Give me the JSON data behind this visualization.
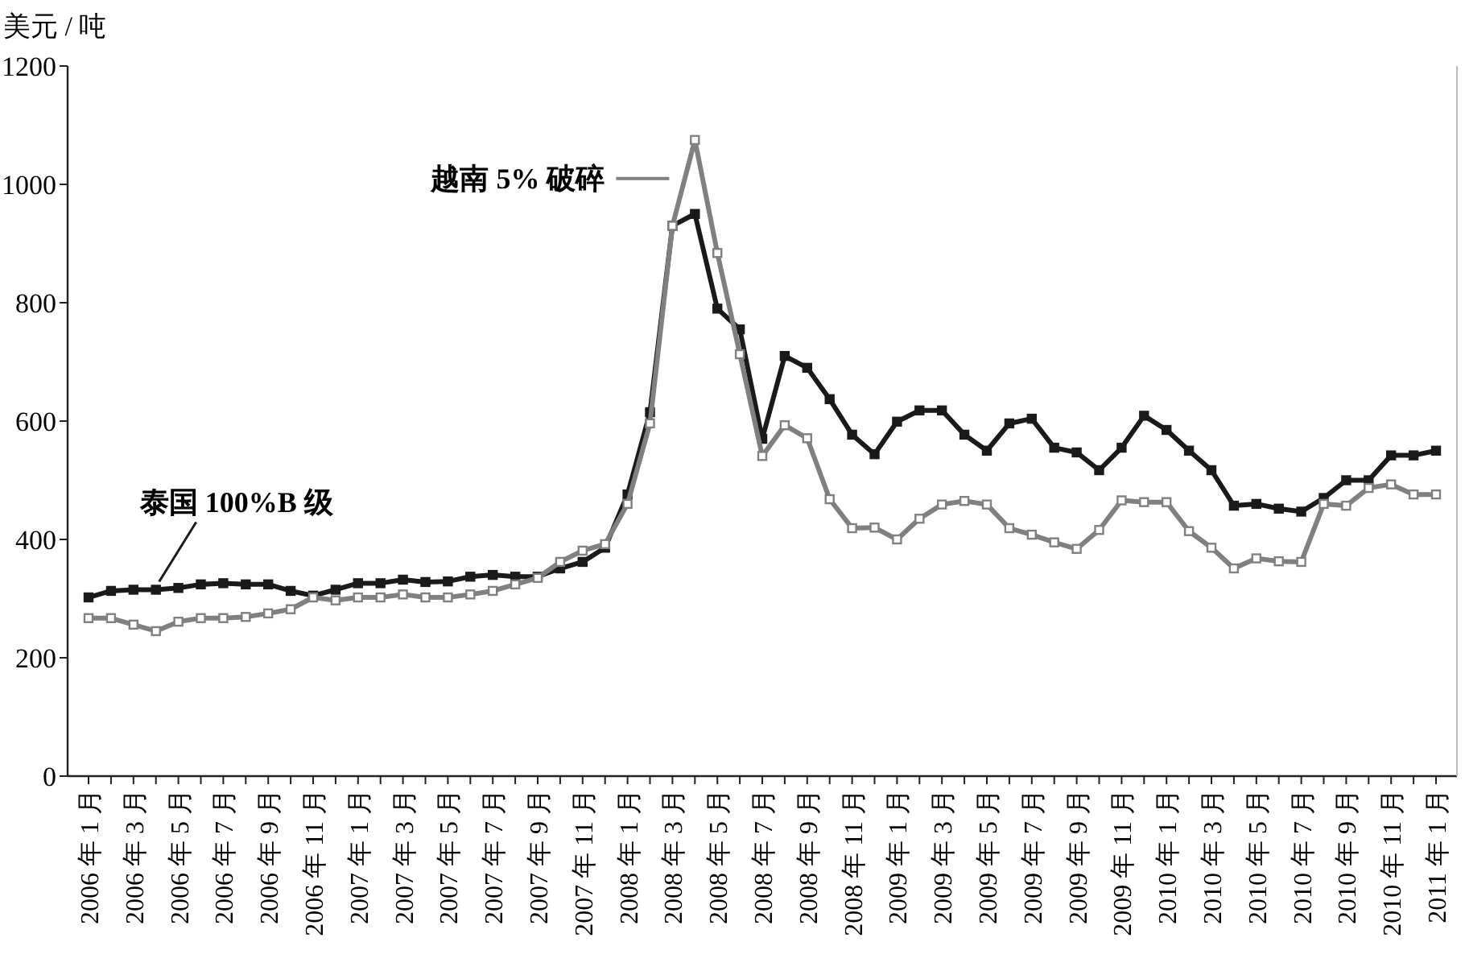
{
  "chart_data": {
    "type": "line",
    "ylabel": "美元 / 吨",
    "categories": [
      "2006 年 1 月",
      null,
      "2006 年 3 月",
      null,
      "2006 年 5 月",
      null,
      "2006 年 7 月",
      null,
      "2006 年 9 月",
      null,
      "2006 年 11 月",
      null,
      "2007 年 1 月",
      null,
      "2007 年 3 月",
      null,
      "2007 年 5 月",
      null,
      "2007 年 7 月",
      null,
      "2007 年 9 月",
      null,
      "2007 年 11 月",
      null,
      "2008 年 1 月",
      null,
      "2008 年 3 月",
      null,
      "2008 年 5 月",
      null,
      "2008 年 7 月",
      null,
      "2008 年 9 月",
      null,
      "2008 年 11 月",
      null,
      "2009 年 1 月",
      null,
      "2009 年 3 月",
      null,
      "2009 年 5 月",
      null,
      "2009 年 7 月",
      null,
      "2009 年 9 月",
      null,
      "2009 年 11 月",
      null,
      "2010 年 1 月",
      null,
      "2010 年 3 月",
      null,
      "2010 年 5 月",
      null,
      "2010 年 7 月",
      null,
      "2010 年 9 月",
      null,
      "2010 年 11 月",
      null,
      "2011 年 1 月"
    ],
    "series": [
      {
        "name": "泰国 100%B 级",
        "color": "#1a1a1a",
        "values": [
          302,
          313,
          315,
          315,
          318,
          324,
          326,
          324,
          324,
          313,
          305,
          315,
          326,
          326,
          332,
          328,
          329,
          337,
          340,
          337,
          337,
          351,
          362,
          386,
          476,
          615,
          930,
          950,
          790,
          755,
          570,
          710,
          690,
          637,
          577,
          544,
          599,
          618,
          618,
          577,
          550,
          596,
          604,
          555,
          547,
          517,
          555,
          609,
          585,
          550,
          517,
          457,
          460,
          452,
          447,
          470,
          500,
          500,
          542,
          542,
          550
        ]
      },
      {
        "name": "越南 5% 破碎",
        "color": "#808080",
        "values": [
          267,
          267,
          256,
          245,
          261,
          267,
          267,
          269,
          275,
          282,
          302,
          297,
          302,
          302,
          307,
          302,
          302,
          307,
          313,
          324,
          335,
          362,
          381,
          392,
          460,
          596,
          930,
          1075,
          884,
          713,
          541,
          593,
          571,
          468,
          419,
          420,
          400,
          435,
          459,
          465,
          459,
          419,
          408,
          395,
          384,
          416,
          466,
          463,
          463,
          414,
          386,
          351,
          368,
          363,
          362,
          460,
          457,
          487,
          493,
          476,
          476
        ]
      }
    ],
    "ylim": [
      0,
      1200
    ],
    "yticks": [
      0,
      200,
      400,
      600,
      800,
      1000,
      1200
    ],
    "marker": "square",
    "grid": false
  }
}
